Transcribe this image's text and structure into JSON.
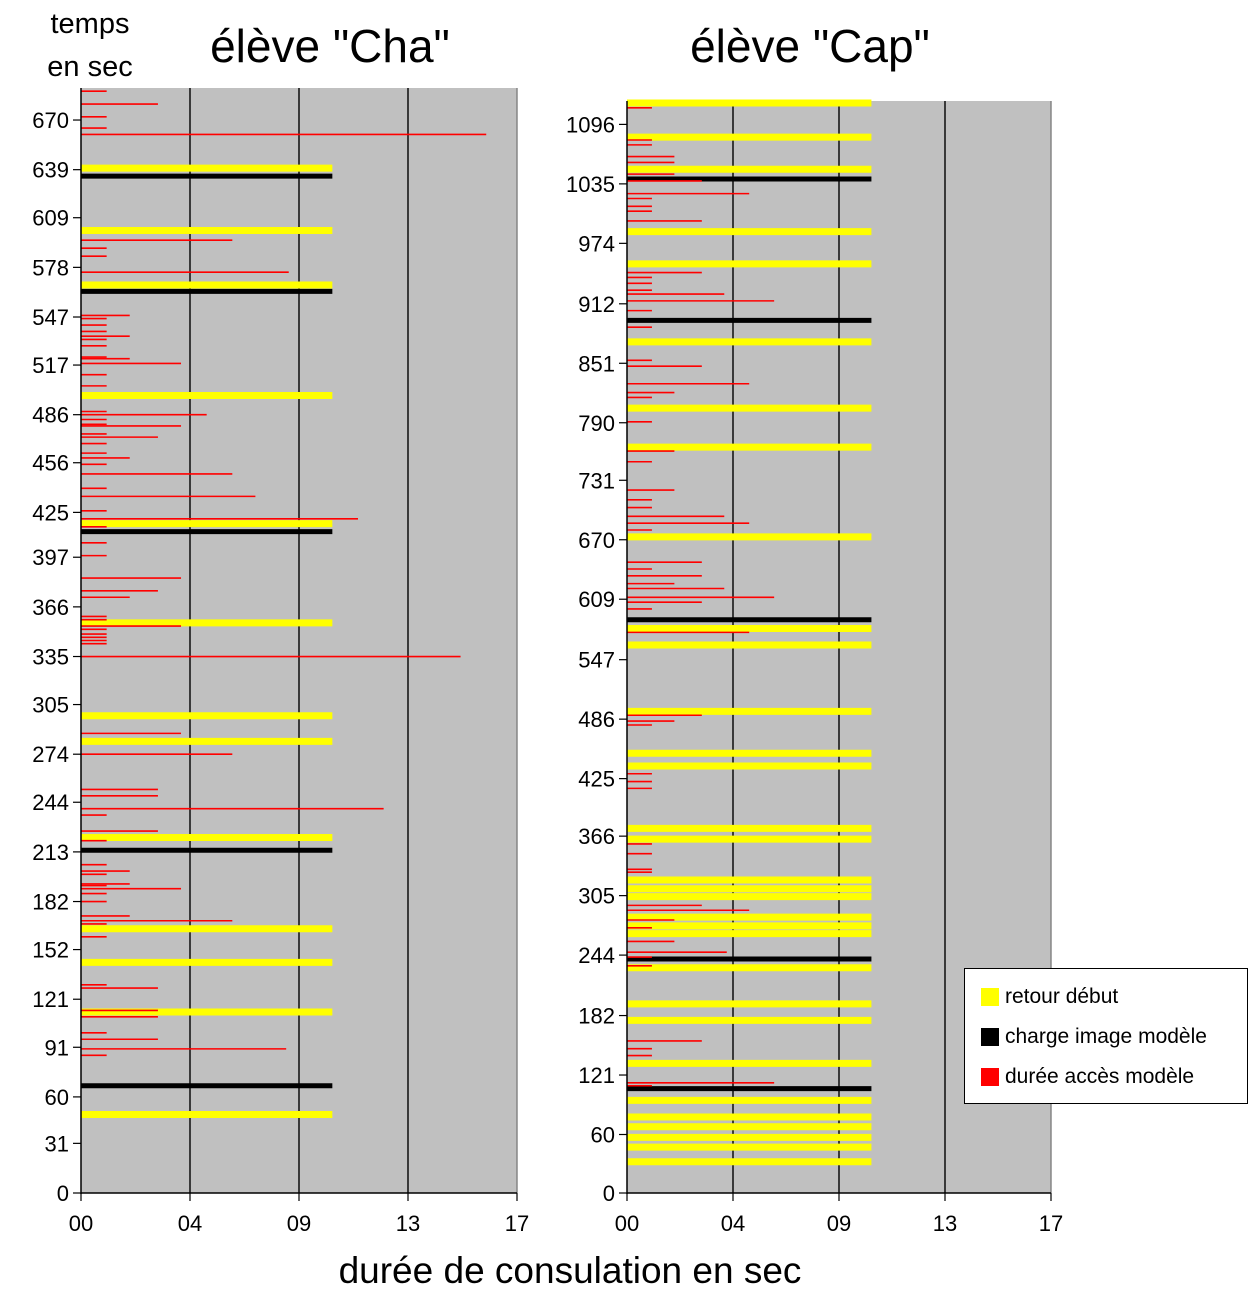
{
  "y_axis_title_line1": "temps",
  "y_axis_title_line2": "en sec",
  "x_axis_title": "durée de consulation en sec",
  "colors": {
    "plot_background": "#c0c0c0",
    "gridline": "#000000",
    "retour": "#ffff00",
    "charge": "#000000",
    "acces": "#ff0000"
  },
  "legend": [
    {
      "key": "retour",
      "label": "retour début",
      "color": "#ffff00"
    },
    {
      "key": "charge",
      "label": "charge image modèle",
      "color": "#000000"
    },
    {
      "key": "acces",
      "label": "durée accès modèle",
      "color": "#ff0000"
    }
  ],
  "chart_data": [
    {
      "type": "bar",
      "orientation": "horizontal",
      "title": "élève \"Cha\"",
      "xlabel": "durée de consulation en sec",
      "ylabel": "temps en sec",
      "x_ticks": [
        "00",
        "04",
        "09",
        "13",
        "17"
      ],
      "xlim": [
        0,
        17
      ],
      "y_ticks": [
        0,
        31,
        60,
        91,
        121,
        152,
        182,
        213,
        244,
        274,
        305,
        335,
        366,
        397,
        425,
        456,
        486,
        517,
        547,
        578,
        609,
        639,
        670
      ],
      "ylim": [
        0,
        690
      ],
      "grid": "vertical lines at 04, 09, 13",
      "series": [
        {
          "name": "retour début",
          "key": "retour",
          "points": [
            [
              49,
              9.8
            ],
            [
              144,
              9.8
            ],
            [
              165,
              9.8
            ],
            [
              113,
              9.8
            ],
            [
              222,
              9.8
            ],
            [
              282,
              9.8
            ],
            [
              298,
              9.8
            ],
            [
              356,
              9.8
            ],
            [
              418,
              9.8
            ],
            [
              498,
              9.8
            ],
            [
              567,
              9.8
            ],
            [
              601,
              9.8
            ],
            [
              640,
              9.8
            ]
          ]
        },
        {
          "name": "charge image modèle",
          "key": "charge",
          "points": [
            [
              67,
              9.8
            ],
            [
              214,
              9.8
            ],
            [
              413,
              9.8
            ],
            [
              563,
              9.8
            ],
            [
              635,
              9.8
            ]
          ]
        },
        {
          "name": "durée accès modèle",
          "key": "acces",
          "points": [
            [
              688,
              1.0
            ],
            [
              680,
              3.0
            ],
            [
              672,
              1.0
            ],
            [
              661,
              15.8
            ],
            [
              665,
              1.0
            ],
            [
              595,
              5.9
            ],
            [
              590,
              1.0
            ],
            [
              585,
              1.0
            ],
            [
              575,
              8.1
            ],
            [
              546,
              1.0
            ],
            [
              548,
              1.9
            ],
            [
              542,
              1.0
            ],
            [
              538,
              1.0
            ],
            [
              535,
              1.9
            ],
            [
              533,
              1.0
            ],
            [
              529,
              1.0
            ],
            [
              522,
              1.0
            ],
            [
              521,
              1.9
            ],
            [
              518,
              3.9
            ],
            [
              511,
              1.0
            ],
            [
              504,
              1.0
            ],
            [
              488,
              1.0
            ],
            [
              486,
              4.9
            ],
            [
              483,
              1.0
            ],
            [
              480,
              1.0
            ],
            [
              479,
              3.9
            ],
            [
              474,
              1.0
            ],
            [
              472,
              3.0
            ],
            [
              468,
              1.0
            ],
            [
              462,
              1.0
            ],
            [
              459,
              1.9
            ],
            [
              455,
              1.0
            ],
            [
              449,
              5.9
            ],
            [
              440,
              1.0
            ],
            [
              435,
              6.8
            ],
            [
              426,
              1.0
            ],
            [
              421,
              10.8
            ],
            [
              416,
              1.0
            ],
            [
              406,
              1.0
            ],
            [
              398,
              1.0
            ],
            [
              384,
              3.9
            ],
            [
              376,
              3.0
            ],
            [
              372,
              1.9
            ],
            [
              360,
              1.0
            ],
            [
              358,
              1.0
            ],
            [
              354,
              3.9
            ],
            [
              352,
              1.0
            ],
            [
              349,
              1.0
            ],
            [
              347,
              1.0
            ],
            [
              345,
              1.0
            ],
            [
              343,
              1.0
            ],
            [
              335,
              14.8
            ],
            [
              287,
              3.9
            ],
            [
              274,
              5.9
            ],
            [
              252,
              3.0
            ],
            [
              248,
              3.0
            ],
            [
              240,
              11.8
            ],
            [
              236,
              1.0
            ],
            [
              226,
              3.0
            ],
            [
              220,
              1.0
            ],
            [
              205,
              1.0
            ],
            [
              201,
              1.9
            ],
            [
              199,
              1.0
            ],
            [
              193,
              1.9
            ],
            [
              192,
              1.0
            ],
            [
              190,
              3.9
            ],
            [
              187,
              1.0
            ],
            [
              182,
              1.0
            ],
            [
              173,
              1.9
            ],
            [
              170,
              5.9
            ],
            [
              168,
              1.0
            ],
            [
              160,
              1.0
            ],
            [
              130,
              1.0
            ],
            [
              128,
              3.0
            ],
            [
              114,
              3.0
            ],
            [
              110,
              3.0
            ],
            [
              100,
              1.0
            ],
            [
              96,
              3.0
            ],
            [
              90,
              8.0
            ],
            [
              86,
              1.0
            ]
          ]
        }
      ]
    },
    {
      "type": "bar",
      "orientation": "horizontal",
      "title": "élève \"Cap\"",
      "xlabel": "durée de consulation en sec",
      "ylabel": "temps en sec",
      "x_ticks": [
        "00",
        "04",
        "09",
        "13",
        "17"
      ],
      "xlim": [
        0,
        17
      ],
      "y_ticks": [
        0,
        60,
        121,
        182,
        244,
        305,
        366,
        425,
        486,
        547,
        609,
        670,
        731,
        790,
        851,
        912,
        974,
        1035,
        1096
      ],
      "ylim": [
        0,
        1120
      ],
      "grid": "vertical lines at 04, 09, 13",
      "series": [
        {
          "name": "retour début",
          "key": "retour",
          "points": [
            [
              1118,
              9.8
            ],
            [
              1083,
              9.8
            ],
            [
              1050,
              9.8
            ],
            [
              986,
              9.8
            ],
            [
              953,
              9.8
            ],
            [
              873,
              9.8
            ],
            [
              805,
              9.8
            ],
            [
              765,
              9.8
            ],
            [
              673,
              9.8
            ],
            [
              579,
              9.8
            ],
            [
              562,
              9.8
            ],
            [
              494,
              9.8
            ],
            [
              451,
              9.8
            ],
            [
              438,
              9.8
            ],
            [
              374,
              9.8
            ],
            [
              363,
              9.8
            ],
            [
              321,
              9.8
            ],
            [
              312,
              9.8
            ],
            [
              304,
              9.8
            ],
            [
              283,
              9.8
            ],
            [
              274,
              9.8
            ],
            [
              266,
              9.8
            ],
            [
              231,
              9.8
            ],
            [
              194,
              9.8
            ],
            [
              177,
              9.8
            ],
            [
              133,
              9.8
            ],
            [
              95,
              9.8
            ],
            [
              78,
              9.8
            ],
            [
              68,
              9.8
            ],
            [
              57,
              9.8
            ],
            [
              47,
              9.8
            ],
            [
              32,
              9.8
            ]
          ]
        },
        {
          "name": "charge image modèle",
          "key": "charge",
          "points": [
            [
              1040,
              9.8
            ],
            [
              895,
              9.8
            ],
            [
              588,
              9.8
            ],
            [
              240,
              9.8
            ],
            [
              107,
              9.8
            ]
          ]
        },
        {
          "name": "durée accès modèle",
          "key": "acces",
          "points": [
            [
              1113,
              1.0
            ],
            [
              1080,
              1.0
            ],
            [
              1075,
              1.0
            ],
            [
              1063,
              1.9
            ],
            [
              1057,
              1.9
            ],
            [
              1045,
              1.9
            ],
            [
              1038,
              3.0
            ],
            [
              1025,
              4.9
            ],
            [
              1020,
              1.0
            ],
            [
              1012,
              1.0
            ],
            [
              1007,
              1.0
            ],
            [
              997,
              3.0
            ],
            [
              944,
              3.0
            ],
            [
              939,
              1.0
            ],
            [
              933,
              1.0
            ],
            [
              926,
              1.0
            ],
            [
              922,
              3.9
            ],
            [
              915,
              5.9
            ],
            [
              905,
              1.0
            ],
            [
              888,
              1.0
            ],
            [
              854,
              1.0
            ],
            [
              848,
              3.0
            ],
            [
              830,
              4.9
            ],
            [
              821,
              1.9
            ],
            [
              816,
              1.0
            ],
            [
              791,
              1.0
            ],
            [
              761,
              1.9
            ],
            [
              750,
              1.0
            ],
            [
              721,
              1.9
            ],
            [
              711,
              1.0
            ],
            [
              703,
              1.0
            ],
            [
              694,
              3.9
            ],
            [
              687,
              4.9
            ],
            [
              680,
              1.0
            ],
            [
              647,
              3.0
            ],
            [
              640,
              1.0
            ],
            [
              633,
              3.0
            ],
            [
              625,
              1.9
            ],
            [
              620,
              3.9
            ],
            [
              611,
              5.9
            ],
            [
              606,
              3.0
            ],
            [
              599,
              1.0
            ],
            [
              575,
              4.9
            ],
            [
              490,
              3.0
            ],
            [
              484,
              1.9
            ],
            [
              480,
              1.0
            ],
            [
              430,
              1.0
            ],
            [
              422,
              1.0
            ],
            [
              415,
              1.0
            ],
            [
              358,
              1.0
            ],
            [
              348,
              1.0
            ],
            [
              332,
              1.0
            ],
            [
              329,
              1.0
            ],
            [
              295,
              3.0
            ],
            [
              290,
              4.9
            ],
            [
              280,
              1.9
            ],
            [
              272,
              1.0
            ],
            [
              258,
              1.9
            ],
            [
              247,
              4.0
            ],
            [
              242,
              1.0
            ],
            [
              233,
              1.0
            ],
            [
              156,
              3.0
            ],
            [
              148,
              1.0
            ],
            [
              141,
              1.0
            ],
            [
              113,
              5.9
            ],
            [
              110,
              1.0
            ]
          ]
        }
      ]
    }
  ]
}
